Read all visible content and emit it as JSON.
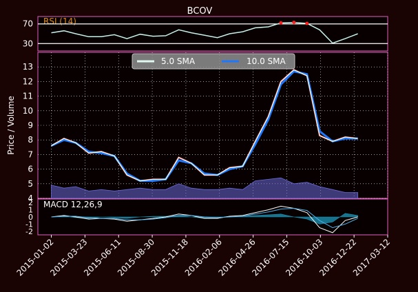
{
  "title": "BCOV",
  "colors": {
    "background": "#1a0303",
    "panel_bg": "#080000",
    "frame": "#e060c0",
    "text": "#ffffff",
    "grid": "#ffffff",
    "rsi_line": "#c8f0e8",
    "rsi_title": "#e08f1a",
    "overbought": "#ff2020",
    "oversold": "#20ff20",
    "price_line": "#ff2020",
    "sma_fast": "#e0f8f0",
    "sma_slow": "#1e78ff",
    "volume": "#6a6ad8",
    "macd_line": "#ffffff",
    "signal_line": "#4fb0e8",
    "histogram": "#1c8fb0"
  },
  "chart_data": [
    {
      "type": "line",
      "name": "rsi-panel",
      "title": "RSI (14)",
      "yticks": [
        "70",
        "30"
      ],
      "reference_lines": [
        70,
        30
      ],
      "ylim": [
        15,
        85
      ],
      "x": [
        "2015-01-02",
        "2015-02-01",
        "2015-03-01",
        "2015-04-01",
        "2015-05-01",
        "2015-06-01",
        "2015-07-01",
        "2015-08-01",
        "2015-09-01",
        "2015-10-01",
        "2015-11-01",
        "2015-12-01",
        "2016-01-01",
        "2016-02-01",
        "2016-03-01",
        "2016-04-01",
        "2016-05-01",
        "2016-06-01",
        "2016-07-01",
        "2016-08-01",
        "2016-09-01",
        "2016-10-01",
        "2016-11-01",
        "2016-12-01",
        "2016-12-31"
      ],
      "values": [
        52,
        56,
        50,
        44,
        44,
        48,
        40,
        49,
        45,
        46,
        58,
        52,
        47,
        42,
        50,
        54,
        62,
        64,
        72,
        73,
        71,
        58,
        31,
        40,
        50
      ]
    },
    {
      "type": "line",
      "name": "price-panel",
      "ylabel": "Price / Volume",
      "yticks": [
        "4",
        "5",
        "6",
        "7",
        "8",
        "9",
        "10",
        "11",
        "12",
        "13"
      ],
      "ylim": [
        4,
        14
      ],
      "grid": true,
      "legend_position": "top-center",
      "x": [
        "2015-01-02",
        "2015-02-01",
        "2015-03-01",
        "2015-04-01",
        "2015-05-01",
        "2015-06-01",
        "2015-07-01",
        "2015-08-01",
        "2015-09-01",
        "2015-10-01",
        "2015-11-01",
        "2015-12-01",
        "2016-01-01",
        "2016-02-01",
        "2016-03-01",
        "2016-04-01",
        "2016-05-01",
        "2016-06-01",
        "2016-07-01",
        "2016-08-01",
        "2016-09-01",
        "2016-10-01",
        "2016-11-01",
        "2016-12-01",
        "2016-12-31"
      ],
      "series": [
        {
          "name": "5.0 SMA",
          "values": [
            7.6,
            8.1,
            7.8,
            7.1,
            7.2,
            6.9,
            5.6,
            5.2,
            5.3,
            5.3,
            6.8,
            6.4,
            5.6,
            5.6,
            6.1,
            6.2,
            7.9,
            9.6,
            12.0,
            12.8,
            12.4,
            8.3,
            7.9,
            8.2,
            8.1
          ]
        },
        {
          "name": "10.0 SMA",
          "values": [
            7.6,
            8.0,
            7.8,
            7.2,
            7.1,
            6.9,
            5.7,
            5.2,
            5.2,
            5.3,
            6.6,
            6.4,
            5.7,
            5.6,
            6.0,
            6.2,
            7.7,
            9.4,
            11.8,
            12.7,
            12.5,
            8.6,
            7.9,
            8.1,
            8.1
          ]
        }
      ],
      "volume": [
        0.9,
        0.7,
        0.8,
        0.5,
        0.6,
        0.5,
        0.6,
        0.7,
        0.6,
        0.6,
        1.0,
        0.7,
        0.6,
        0.6,
        0.7,
        0.6,
        1.2,
        1.3,
        1.4,
        1.0,
        1.1,
        0.8,
        0.6,
        0.4,
        0.4
      ]
    },
    {
      "type": "line",
      "name": "macd-panel",
      "title": "MACD 12,26,9",
      "yticks": [
        "2",
        "1",
        "0",
        "-1",
        "-2"
      ],
      "ylim": [
        -2.5,
        2.5
      ],
      "x": [
        "2015-01-02",
        "2015-02-01",
        "2015-03-01",
        "2015-04-01",
        "2015-05-01",
        "2015-06-01",
        "2015-07-01",
        "2015-08-01",
        "2015-09-01",
        "2015-10-01",
        "2015-11-01",
        "2015-12-01",
        "2016-01-01",
        "2016-02-01",
        "2016-03-01",
        "2016-04-01",
        "2016-05-01",
        "2016-06-01",
        "2016-07-01",
        "2016-08-01",
        "2016-09-01",
        "2016-10-01",
        "2016-11-01",
        "2016-12-01",
        "2016-12-31"
      ],
      "xticks": [
        "2015-01-02",
        "2015-03-23",
        "2015-06-11",
        "2015-08-30",
        "2015-11-18",
        "2016-02-06",
        "2016-04-26",
        "2016-07-15",
        "2016-10-03",
        "2016-12-22",
        "2017-03-12"
      ],
      "series": [
        {
          "values": [
            0.0,
            0.2,
            0.0,
            -0.3,
            -0.2,
            -0.3,
            -0.6,
            -0.4,
            -0.2,
            0.0,
            0.4,
            0.2,
            -0.2,
            -0.2,
            0.1,
            0.2,
            0.6,
            1.0,
            1.5,
            1.2,
            0.6,
            -1.5,
            -2.2,
            -0.5,
            0.0
          ]
        },
        {
          "values": [
            0.0,
            0.1,
            0.1,
            -0.1,
            -0.2,
            -0.2,
            -0.4,
            -0.4,
            -0.3,
            -0.1,
            0.2,
            0.2,
            0.0,
            -0.1,
            0.0,
            0.1,
            0.4,
            0.7,
            1.1,
            1.2,
            0.9,
            -0.5,
            -1.5,
            -1.0,
            -0.2
          ]
        }
      ],
      "histogram": [
        0.0,
        0.1,
        -0.1,
        -0.2,
        0.0,
        -0.1,
        -0.2,
        0.0,
        0.1,
        0.1,
        0.2,
        0.0,
        -0.2,
        -0.1,
        0.1,
        0.1,
        0.2,
        0.3,
        0.4,
        0.0,
        -0.3,
        -1.0,
        -0.7,
        0.5,
        0.2
      ]
    }
  ]
}
